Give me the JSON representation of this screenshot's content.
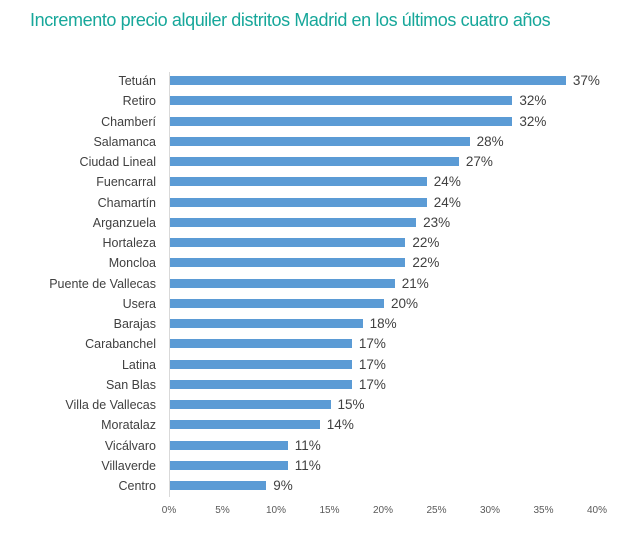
{
  "chart_data": {
    "type": "bar",
    "orientation": "horizontal",
    "title": "Incremento precio alquiler distritos Madrid en los últimos cuatro años",
    "xlabel": "",
    "ylabel": "",
    "categories": [
      "Tetuán",
      "Retiro",
      "Chamberí",
      "Salamanca",
      "Ciudad Lineal",
      "Fuencarral",
      "Chamartín",
      "Arganzuela",
      "Hortaleza",
      "Moncloa",
      "Puente de Vallecas",
      "Usera",
      "Barajas",
      "Carabanchel",
      "Latina",
      "San Blas",
      "Villa de Vallecas",
      "Moratalaz",
      "Vicálvaro",
      "Villaverde",
      "Centro"
    ],
    "values": [
      37,
      32,
      32,
      28,
      27,
      24,
      24,
      23,
      22,
      22,
      21,
      20,
      18,
      17,
      17,
      17,
      15,
      14,
      11,
      11,
      9
    ],
    "labels": [
      "37%",
      "32%",
      "32%",
      "28%",
      "27%",
      "24%",
      "24%",
      "23%",
      "22%",
      "22%",
      "21%",
      "20%",
      "18%",
      "17%",
      "17%",
      "17%",
      "15%",
      "14%",
      "11%",
      "11%",
      "9%"
    ],
    "xlim": [
      0,
      40
    ],
    "xticks": [
      "0%",
      "5%",
      "10%",
      "15%",
      "20%",
      "25%",
      "30%",
      "35%",
      "40%"
    ],
    "grid": false,
    "legend": null,
    "bar_color": "#5b9bd5",
    "title_color": "#17a79a"
  }
}
